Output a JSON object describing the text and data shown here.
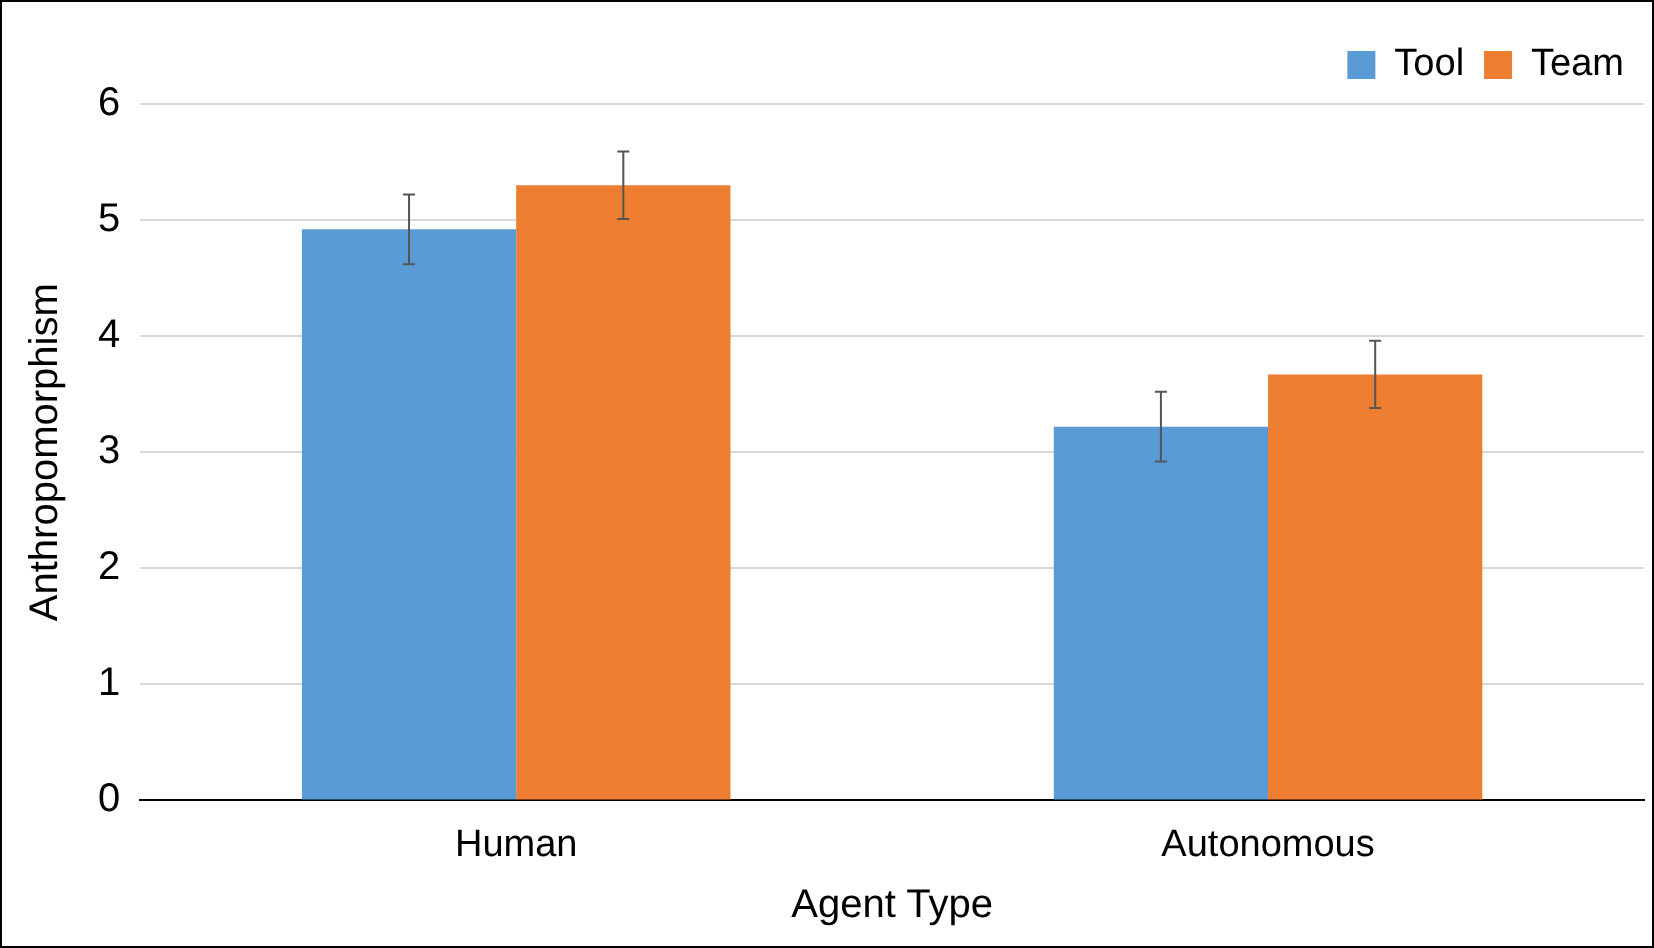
{
  "chart_data": {
    "type": "bar",
    "xlabel": "Agent Type",
    "ylabel": "Anthropomorphism",
    "categories": [
      "Human",
      "Autonomous"
    ],
    "series": [
      {
        "name": "Tool",
        "color": "#5b9bd5",
        "values": [
          4.92,
          3.22
        ],
        "errors": [
          0.3,
          0.3
        ]
      },
      {
        "name": "Team",
        "color": "#ed7d31",
        "values": [
          5.3,
          3.67
        ],
        "errors": [
          0.29,
          0.29
        ]
      }
    ],
    "ylim": [
      0,
      6
    ],
    "yticks": [
      0,
      1,
      2,
      3,
      4,
      5,
      6
    ],
    "grid": "y",
    "legend": "top right"
  }
}
